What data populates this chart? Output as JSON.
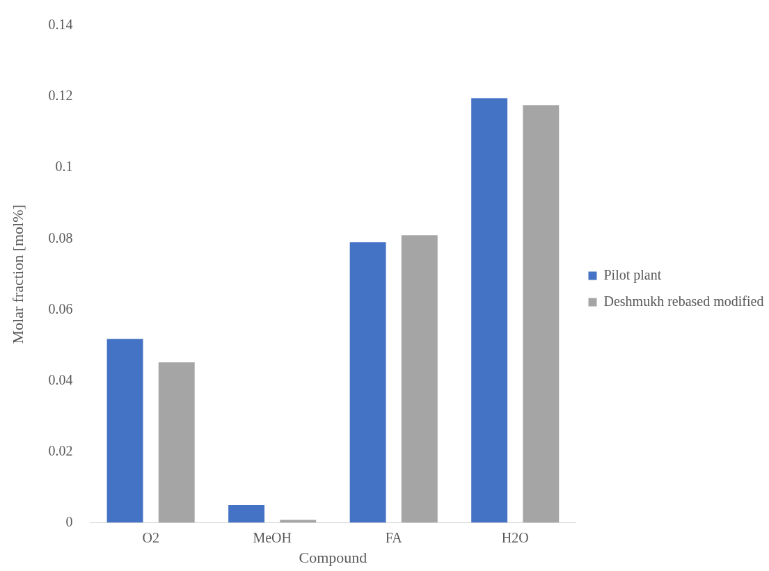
{
  "chart_data": {
    "type": "bar",
    "xlabel": "Compound",
    "ylabel": "Molar fraction [mol%]",
    "categories": [
      "O2",
      "MeOH",
      "FA",
      "H2O"
    ],
    "series": [
      {
        "name": "Pilot plant",
        "color": "#4472c4",
        "values": [
          0.0518,
          0.005,
          0.079,
          0.1196
        ]
      },
      {
        "name": "Deshmukh rebased modified",
        "color": "#a5a5a5",
        "values": [
          0.0452,
          0.0008,
          0.081,
          0.1176
        ]
      }
    ],
    "ylim": [
      0,
      0.14
    ],
    "yticks": [
      0,
      0.02,
      0.04,
      0.06,
      0.08,
      0.1,
      0.12,
      0.14
    ],
    "grid": false,
    "legend": "right"
  }
}
